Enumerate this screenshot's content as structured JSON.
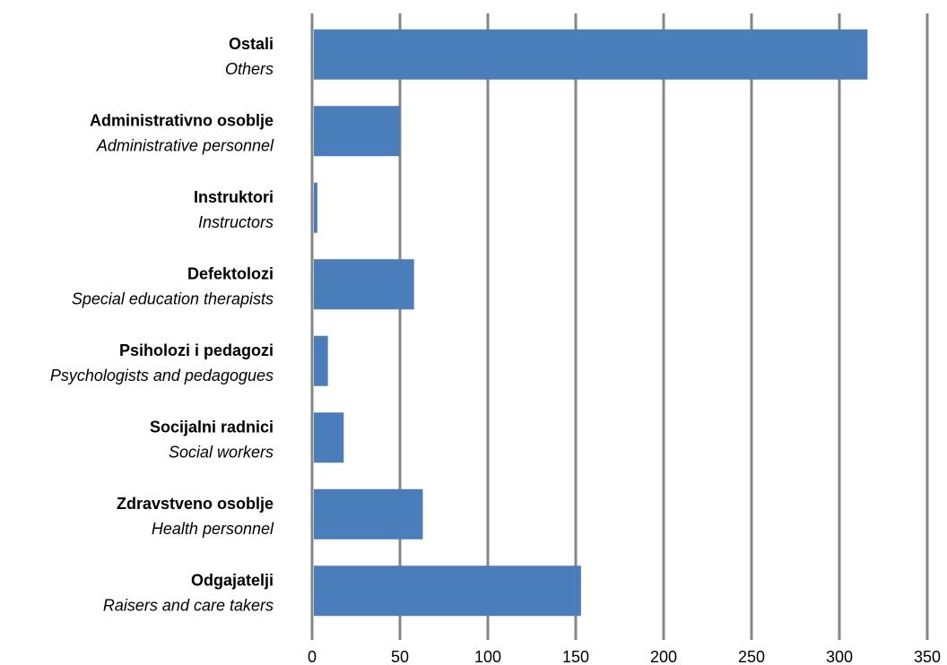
{
  "chart_data": {
    "type": "bar",
    "orientation": "horizontal",
    "categories": [
      {
        "main": "Ostali",
        "sub": "Others"
      },
      {
        "main": "Administrativno osoblje",
        "sub": "Administrative personnel"
      },
      {
        "main": "Instruktori",
        "sub": "Instructors"
      },
      {
        "main": "Defektolozi",
        "sub": "Special education therapists"
      },
      {
        "main": "Psiholozi i pedagozi",
        "sub": "Psychologists and pedagogues"
      },
      {
        "main": "Socijalni radnici",
        "sub": "Social workers"
      },
      {
        "main": "Zdravstveno osoblje",
        "sub": "Health personnel"
      },
      {
        "main": "Odgajatelji",
        "sub": "Raisers and care takers"
      }
    ],
    "values": [
      316,
      50,
      3,
      58,
      9,
      18,
      63,
      153
    ],
    "xlim": [
      0,
      350
    ],
    "xticks": [
      0,
      50,
      100,
      150,
      200,
      250,
      300,
      350
    ],
    "grid": true,
    "legend": "none",
    "bar_color": "#4a7ebb",
    "grid_color": "#868686"
  }
}
